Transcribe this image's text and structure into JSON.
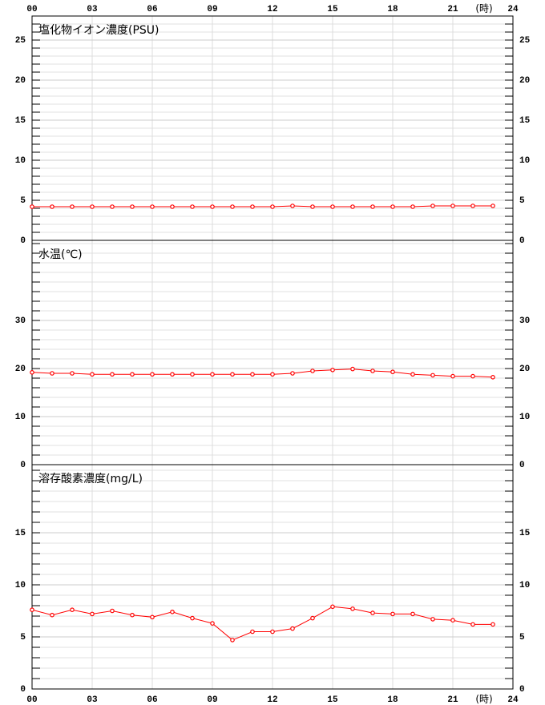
{
  "chart_data": [
    {
      "type": "line",
      "title": "塩化物イオン濃度(PSU)",
      "x_label": "(時)",
      "x": [
        0,
        1,
        2,
        3,
        4,
        5,
        6,
        7,
        8,
        9,
        10,
        11,
        12,
        13,
        14,
        15,
        16,
        17,
        18,
        19,
        20,
        21,
        22,
        23
      ],
      "xlim": [
        0,
        24
      ],
      "xticks": [
        {
          "value": 0,
          "label": "00"
        },
        {
          "value": 3,
          "label": "03"
        },
        {
          "value": 6,
          "label": "06"
        },
        {
          "value": 9,
          "label": "09"
        },
        12,
        15,
        18,
        21,
        24
      ],
      "values": [
        4.2,
        4.2,
        4.2,
        4.2,
        4.2,
        4.2,
        4.2,
        4.2,
        4.2,
        4.2,
        4.2,
        4.2,
        4.2,
        4.3,
        4.2,
        4.2,
        4.2,
        4.2,
        4.2,
        4.2,
        4.3,
        4.3,
        4.3,
        4.3
      ],
      "color": "#ff0000",
      "ylim": [
        0,
        28
      ],
      "yticks": [
        0,
        5,
        10,
        15,
        20,
        25
      ],
      "grid": true
    },
    {
      "type": "line",
      "title": "水温(℃)",
      "x": [
        0,
        1,
        2,
        3,
        4,
        5,
        6,
        7,
        8,
        9,
        10,
        11,
        12,
        13,
        14,
        15,
        16,
        17,
        18,
        19,
        20,
        21,
        22,
        23
      ],
      "xlim": [
        0,
        24
      ],
      "values": [
        19.2,
        19.0,
        19.0,
        18.8,
        18.8,
        18.8,
        18.8,
        18.8,
        18.8,
        18.8,
        18.8,
        18.8,
        18.8,
        19.0,
        19.5,
        19.7,
        19.9,
        19.5,
        19.3,
        18.8,
        18.6,
        18.4,
        18.4,
        18.2
      ],
      "color": "#ff0000",
      "ylim": [
        0,
        46.67
      ],
      "yticks": [
        0,
        10,
        20,
        30
      ],
      "grid": true
    },
    {
      "type": "line",
      "title": "溶存酸素濃度(mg/L)",
      "x_label": "(時)",
      "x": [
        0,
        1,
        2,
        3,
        4,
        5,
        6,
        7,
        8,
        9,
        10,
        11,
        12,
        13,
        14,
        15,
        16,
        17,
        18,
        19,
        20,
        21,
        22,
        23
      ],
      "xlim": [
        0,
        24
      ],
      "xticks": [
        {
          "value": 0,
          "label": "00"
        },
        {
          "value": 3,
          "label": "03"
        },
        {
          "value": 6,
          "label": "06"
        },
        {
          "value": 9,
          "label": "09"
        },
        12,
        15,
        18,
        21,
        24
      ],
      "values": [
        7.6,
        7.1,
        7.6,
        7.2,
        7.5,
        7.1,
        6.9,
        7.4,
        6.8,
        6.3,
        4.7,
        5.5,
        5.5,
        5.8,
        6.8,
        7.9,
        7.7,
        7.3,
        7.2,
        7.2,
        6.7,
        6.6,
        6.2,
        6.2
      ],
      "color": "#ff0000",
      "ylim": [
        0,
        21.54
      ],
      "yticks": [
        0,
        5,
        10,
        15
      ],
      "grid": true
    }
  ]
}
